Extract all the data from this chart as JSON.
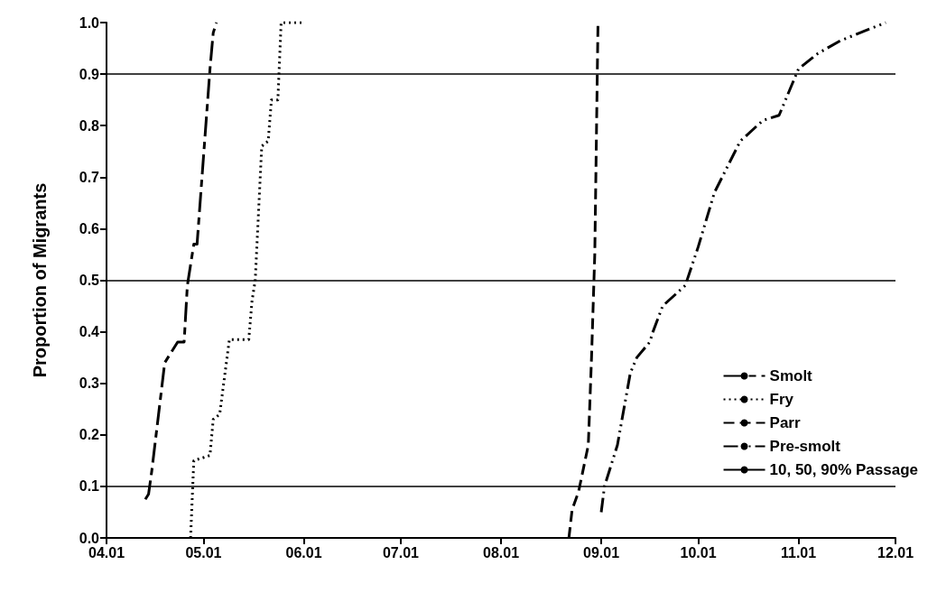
{
  "chart_data": {
    "type": "line",
    "ylabel": "Proportion of Migrants",
    "xlim": [
      "--04-01",
      "--12-01"
    ],
    "xticks": [
      {
        "value": "--04-01",
        "label": "04.01"
      },
      {
        "value": "--05-01",
        "label": "05.01"
      },
      {
        "value": "--06-01",
        "label": "06.01"
      },
      {
        "value": "--07-01",
        "label": "07.01"
      },
      {
        "value": "--08-01",
        "label": "08.01"
      },
      {
        "value": "--09-01",
        "label": "09.01"
      },
      {
        "value": "--10-01",
        "label": "10.01"
      },
      {
        "value": "--11-01",
        "label": "11.01"
      },
      {
        "value": "--12-01",
        "label": "12.01"
      }
    ],
    "ylim": [
      0,
      1
    ],
    "yticks": [
      {
        "value": 0,
        "label": "0.0"
      },
      {
        "value": 0.1,
        "label": "0.1"
      },
      {
        "value": 0.2,
        "label": "0.2"
      },
      {
        "value": 0.3,
        "label": "0.3"
      },
      {
        "value": 0.4,
        "label": "0.4"
      },
      {
        "value": 0.5,
        "label": "0.5"
      },
      {
        "value": 0.6,
        "label": "0.6"
      },
      {
        "value": 0.7,
        "label": "0.7"
      },
      {
        "value": 0.8,
        "label": "0.8"
      },
      {
        "value": 0.9,
        "label": "0.9"
      },
      {
        "value": 1,
        "label": "1.0"
      }
    ],
    "grid": false,
    "legend": "right",
    "marker": "none",
    "series": [
      {
        "name": "Smolt",
        "color": "#000000",
        "line_style": "longdash",
        "x": [
          "--04-13",
          "--04-14",
          "--04-15",
          "--04-19",
          "--04-21",
          "--04-23",
          "--04-25",
          "--04-26",
          "--04-28",
          "--04-29",
          "--05-03",
          "--05-04",
          "--05-05"
        ],
        "values": [
          0.075,
          0.085,
          0.13,
          0.34,
          0.36,
          0.38,
          0.38,
          0.49,
          0.57,
          0.57,
          0.91,
          0.98,
          1.0
        ]
      },
      {
        "name": "Fry",
        "color": "#000000",
        "line_style": "dotted",
        "x": [
          "--04-27",
          "--04-28",
          "--05-03",
          "--05-04",
          "--05-06",
          "--05-09",
          "--05-15",
          "--05-16",
          "--05-17",
          "--05-19",
          "--05-21",
          "--05-22",
          "--05-24",
          "--05-25",
          "--06-01"
        ],
        "values": [
          0.0,
          0.15,
          0.16,
          0.23,
          0.24,
          0.385,
          0.385,
          0.46,
          0.5,
          0.76,
          0.77,
          0.85,
          0.85,
          1.0,
          1.0
        ]
      },
      {
        "name": "Parr",
        "color": "#000000",
        "line_style": "dashed",
        "x": [
          "--08-22",
          "--08-23",
          "--08-25",
          "--08-28",
          "--08-29",
          "--08-30",
          "--08-31"
        ],
        "values": [
          0.0,
          0.055,
          0.09,
          0.18,
          0.35,
          0.55,
          1.0
        ]
      },
      {
        "name": "Pre-smolt",
        "color": "#000000",
        "line_style": "dashdotdot",
        "x": [
          "--09-01",
          "--09-02",
          "--09-06",
          "--09-10",
          "--09-12",
          "--09-16",
          "--09-17",
          "--09-20",
          "--09-27",
          "--10-01",
          "--10-06",
          "--10-14",
          "--10-21",
          "--10-26",
          "--11-01",
          "--11-07",
          "--11-14",
          "--11-28"
        ],
        "values": [
          0.05,
          0.1,
          0.18,
          0.32,
          0.35,
          0.38,
          0.4,
          0.45,
          0.49,
          0.565,
          0.67,
          0.77,
          0.81,
          0.82,
          0.91,
          0.94,
          0.965,
          1.0
        ]
      }
    ],
    "ref_lines": [
      {
        "axis": "y",
        "value": 0.1,
        "label": "10, 50, 90% Passage",
        "color": "#000000",
        "line_style": "solid"
      },
      {
        "axis": "y",
        "value": 0.5,
        "color": "#000000",
        "line_style": "solid"
      },
      {
        "axis": "y",
        "value": 0.9,
        "color": "#000000",
        "line_style": "solid"
      }
    ]
  }
}
